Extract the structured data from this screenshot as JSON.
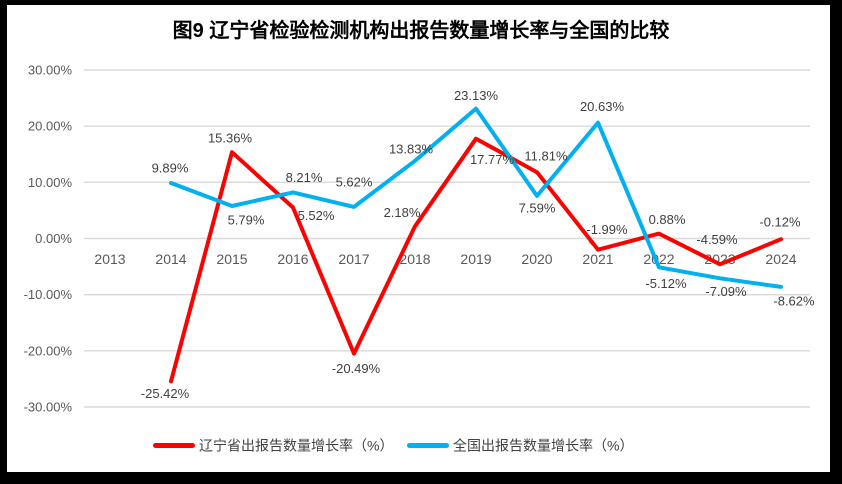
{
  "window": {
    "background": "#ffffff",
    "frame_color": "#000000"
  },
  "colors": {
    "grid": "#D9D9D9",
    "tick_text": "#595959",
    "data_label_text": "#404040",
    "title_text": "#000000",
    "leader_line": "#BFBFBF",
    "series_red": "#FF0000",
    "series_blue": "#00B0F0"
  },
  "chart_data": {
    "type": "line",
    "title": "图9  辽宁省检验检测机构出报告数量增长率与全国的比较",
    "categories": [
      "2013",
      "2014",
      "2015",
      "2016",
      "2017",
      "2018",
      "2019",
      "2020",
      "2021",
      "2022",
      "2023",
      "2024"
    ],
    "grid": true,
    "legend_position": "bottom",
    "y_axis": {
      "min": -30,
      "max": 30,
      "step": 10,
      "tick_labels": [
        "30.00%",
        "20.00%",
        "10.00%",
        "0.00%",
        "-10.00%",
        "-20.00%",
        "-30.00%"
      ]
    },
    "series": [
      {
        "name": "辽宁省出报告数量增长率（%）",
        "color": "#FF0000",
        "values": [
          null,
          -25.42,
          15.36,
          5.52,
          -20.49,
          2.18,
          17.77,
          11.81,
          -1.99,
          0.88,
          -4.59,
          -0.12
        ],
        "labels": [
          null,
          "-25.42%",
          "15.36%",
          "5.52%",
          "-20.49%",
          "2.18%",
          "17.77%",
          "11.81%",
          "-1.99%",
          "0.88%",
          "-4.59%",
          "-0.12%"
        ],
        "label_offsets": [
          null,
          [
            -6,
            12
          ],
          [
            -2,
            -14
          ],
          [
            23,
            8
          ],
          [
            2,
            15
          ],
          [
            -13,
            -14
          ],
          [
            16,
            21
          ],
          [
            9,
            -16
          ],
          [
            9,
            -20
          ],
          [
            8,
            -14
          ],
          [
            -3,
            -25
          ],
          [
            -1,
            -17
          ]
        ]
      },
      {
        "name": "全国出报告数量增长率（%）",
        "color": "#00B0F0",
        "values": [
          null,
          9.89,
          5.79,
          8.21,
          5.62,
          13.83,
          23.13,
          7.59,
          20.63,
          -5.12,
          -7.09,
          -8.62
        ],
        "labels": [
          null,
          "9.89%",
          "5.79%",
          "8.21%",
          "5.62%",
          "13.83%",
          "23.13%",
          "7.59%",
          "20.63%",
          "-5.12%",
          "-7.09%",
          "-8.62%"
        ],
        "label_offsets": [
          null,
          [
            -1,
            -15
          ],
          [
            14,
            14
          ],
          [
            11,
            -15
          ],
          [
            0,
            -25
          ],
          [
            -4,
            -12
          ],
          [
            0,
            -13
          ],
          [
            0,
            12
          ],
          [
            4,
            -16
          ],
          [
            7,
            16
          ],
          [
            6,
            13
          ],
          [
            13,
            14
          ]
        ]
      }
    ]
  },
  "legend": {
    "items": [
      {
        "label": "辽宁省出报告数量增长率（%）",
        "color": "#FF0000"
      },
      {
        "label": "全国出报告数量增长率（%）",
        "color": "#00B0F0"
      }
    ]
  }
}
